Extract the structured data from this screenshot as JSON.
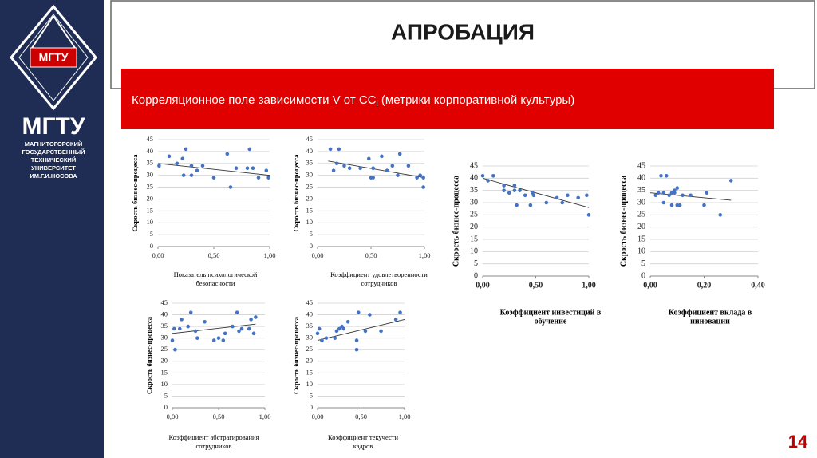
{
  "header": {
    "title": "АПРОБАЦИЯ",
    "subtitle_main": "Корреляционное поле зависимости V от CC",
    "subtitle_sub": "i",
    "subtitle_rest": " (метрики корпоративной культуры)",
    "page_number": "14"
  },
  "logo": {
    "emblem": "МГТУ",
    "name": "МГТУ",
    "lines": [
      "МАГНИТОГОРСКИЙ",
      "ГОСУДАРСТВЕННЫЙ",
      "ТЕХНИЧЕСКИЙ",
      "УНИВЕРСИТЕТ",
      "ИМ.Г.И.НОСОВА"
    ]
  },
  "chart_data": [
    {
      "type": "scatter",
      "y_label": "Скрость бизнес-процесса",
      "x_label": [
        "Показатель психологической",
        "безопасности"
      ],
      "color": "#4472c4",
      "grid": true,
      "x": [
        0.01,
        0.1,
        0.17,
        0.22,
        0.23,
        0.25,
        0.3,
        0.3,
        0.35,
        0.4,
        0.5,
        0.62,
        0.65,
        0.7,
        0.8,
        0.82,
        0.85,
        0.9,
        0.97,
        0.99
      ],
      "y": [
        34,
        38,
        35,
        37,
        30,
        41,
        34,
        30,
        32,
        34,
        29,
        39,
        25,
        33,
        33,
        41,
        33,
        29,
        32,
        29
      ],
      "trendline": {
        "x": [
          0,
          1
        ],
        "y": [
          35,
          30
        ]
      },
      "xlim": [
        0,
        1
      ],
      "ylim": [
        0,
        45
      ],
      "xticks": [
        {
          "value": 0,
          "label": "0,00"
        },
        {
          "value": 0.5,
          "label": "0,50"
        },
        {
          "value": 1,
          "label": "1,00"
        }
      ],
      "yticks": [
        0,
        5,
        10,
        15,
        20,
        25,
        30,
        35,
        40,
        45
      ]
    },
    {
      "type": "scatter",
      "y_label": "Скрость бизнес-процесса",
      "x_label": [
        "Коэффициент удовлетворенности",
        "сотрудников"
      ],
      "color": "#4472c4",
      "grid": true,
      "x": [
        0.12,
        0.15,
        0.18,
        0.2,
        0.25,
        0.3,
        0.4,
        0.48,
        0.5,
        0.52,
        0.52,
        0.6,
        0.65,
        0.7,
        0.75,
        0.77,
        0.85,
        0.93,
        0.96,
        0.99,
        0.99
      ],
      "y": [
        41,
        32,
        35,
        41,
        34,
        33,
        33,
        37,
        29,
        29,
        33,
        38,
        32,
        34,
        30,
        39,
        34,
        29,
        30,
        25,
        29
      ],
      "trendline": {
        "x": [
          0.1,
          1
        ],
        "y": [
          36,
          29
        ]
      },
      "xlim": [
        0,
        1
      ],
      "ylim": [
        0,
        45
      ],
      "xticks": [
        {
          "value": 0,
          "label": "0,00"
        },
        {
          "value": 0.5,
          "label": "0,50"
        },
        {
          "value": 1,
          "label": "1,00"
        }
      ],
      "yticks": [
        0,
        5,
        10,
        15,
        20,
        25,
        30,
        35,
        40,
        45
      ]
    },
    {
      "type": "scatter",
      "y_label": "Скрость бизнес-процесса",
      "x_label": [
        "Коэффициент абстрагирования",
        "сотрудников"
      ],
      "color": "#4472c4",
      "grid": true,
      "x": [
        0.0,
        0.02,
        0.03,
        0.08,
        0.1,
        0.17,
        0.2,
        0.25,
        0.27,
        0.35,
        0.45,
        0.5,
        0.55,
        0.57,
        0.65,
        0.7,
        0.72,
        0.75,
        0.83,
        0.85,
        0.88,
        0.9
      ],
      "y": [
        29,
        34,
        25,
        34,
        38,
        35,
        41,
        33,
        30,
        37,
        29,
        30,
        29,
        32,
        35,
        41,
        33,
        34,
        34,
        38,
        32,
        39
      ],
      "trendline": {
        "x": [
          0,
          0.9
        ],
        "y": [
          32,
          36
        ]
      },
      "xlim": [
        0,
        1
      ],
      "ylim": [
        0,
        45
      ],
      "xticks": [
        {
          "value": 0,
          "label": "0,00"
        },
        {
          "value": 0.5,
          "label": "0,50"
        },
        {
          "value": 1,
          "label": "1,00"
        }
      ],
      "yticks": [
        0,
        5,
        10,
        15,
        20,
        25,
        30,
        35,
        40,
        45
      ]
    },
    {
      "type": "scatter",
      "y_label": "Скрость бизнес-процесса",
      "x_label": [
        "Коэффициент текучести",
        "кадров"
      ],
      "color": "#4472c4",
      "grid": true,
      "x": [
        0.0,
        0.02,
        0.05,
        0.1,
        0.2,
        0.22,
        0.25,
        0.28,
        0.3,
        0.35,
        0.45,
        0.45,
        0.47,
        0.55,
        0.6,
        0.73,
        0.9,
        0.95
      ],
      "y": [
        32,
        34,
        29,
        30,
        30,
        33,
        34,
        35,
        34,
        37,
        25,
        29,
        41,
        33,
        40,
        33,
        38,
        41
      ],
      "trendline": {
        "x": [
          0,
          1
        ],
        "y": [
          29,
          38
        ]
      },
      "xlim": [
        0,
        1
      ],
      "ylim": [
        0,
        45
      ],
      "xticks": [
        {
          "value": 0,
          "label": "0,00"
        },
        {
          "value": 0.5,
          "label": "0,50"
        },
        {
          "value": 1,
          "label": "1,00"
        }
      ],
      "yticks": [
        0,
        5,
        10,
        15,
        20,
        25,
        30,
        35,
        40,
        45
      ]
    },
    {
      "type": "scatter",
      "y_label": "Скрость бизнес-процесса",
      "x_label": [
        "Коэффициент инвестиций в",
        "обучение"
      ],
      "color": "#4472c4",
      "grid": true,
      "x": [
        0.0,
        0.05,
        0.1,
        0.2,
        0.2,
        0.25,
        0.3,
        0.3,
        0.32,
        0.35,
        0.4,
        0.45,
        0.47,
        0.48,
        0.6,
        0.7,
        0.75,
        0.8,
        0.9,
        0.98,
        1.0
      ],
      "y": [
        41,
        39,
        41,
        37,
        35,
        34,
        37,
        35,
        29,
        35,
        33,
        29,
        34,
        33,
        30,
        32,
        30,
        33,
        32,
        33,
        25
      ],
      "trendline": {
        "x": [
          0,
          1
        ],
        "y": [
          40,
          28
        ]
      },
      "xlim": [
        0,
        1
      ],
      "ylim": [
        0,
        45
      ],
      "xticks": [
        {
          "value": 0,
          "label": "0,00"
        },
        {
          "value": 0.5,
          "label": "0,50"
        },
        {
          "value": 1,
          "label": "1,00"
        }
      ],
      "yticks": [
        0,
        5,
        10,
        15,
        20,
        25,
        30,
        35,
        40,
        45
      ]
    },
    {
      "type": "scatter",
      "y_label": "Скрость бизнес-процесса",
      "x_label": [
        "Коэффициент вклада в",
        "инновации"
      ],
      "color": "#4472c4",
      "grid": true,
      "x": [
        0.02,
        0.03,
        0.04,
        0.05,
        0.05,
        0.06,
        0.07,
        0.08,
        0.08,
        0.09,
        0.09,
        0.1,
        0.1,
        0.11,
        0.12,
        0.15,
        0.2,
        0.21,
        0.26,
        0.3
      ],
      "y": [
        33,
        34,
        41,
        30,
        34,
        41,
        33,
        34,
        29,
        34,
        35,
        36,
        29,
        29,
        33,
        33,
        29,
        34,
        25,
        39
      ],
      "trendline": {
        "x": [
          0,
          0.3
        ],
        "y": [
          34,
          31
        ]
      },
      "xlim": [
        0,
        0.4
      ],
      "ylim": [
        0,
        45
      ],
      "xticks": [
        {
          "value": 0,
          "label": "0,00"
        },
        {
          "value": 0.2,
          "label": "0,20"
        },
        {
          "value": 0.4,
          "label": "0,40"
        }
      ],
      "yticks": [
        0,
        5,
        10,
        15,
        20,
        25,
        30,
        35,
        40,
        45
      ]
    }
  ]
}
